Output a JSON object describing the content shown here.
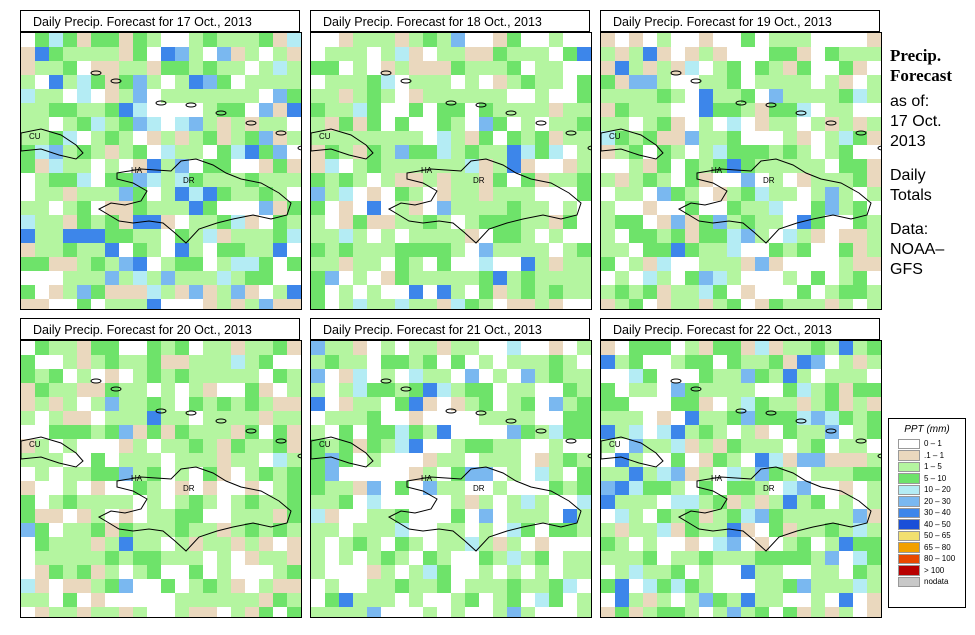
{
  "panels": [
    {
      "title": "Daily Precip. Forecast for  17 Oct., 2013",
      "seed": 11,
      "blue": 0.18,
      "green": 0.55,
      "tan": 0.1
    },
    {
      "title": "Daily Precip. Forecast for  18 Oct., 2013",
      "seed": 23,
      "blue": 0.08,
      "green": 0.58,
      "tan": 0.1
    },
    {
      "title": "Daily Precip. Forecast for  19 Oct., 2013",
      "seed": 37,
      "blue": 0.1,
      "green": 0.5,
      "tan": 0.14
    },
    {
      "title": "Daily Precip. Forecast for  20 Oct., 2013",
      "seed": 41,
      "blue": 0.05,
      "green": 0.6,
      "tan": 0.12
    },
    {
      "title": "Daily Precip. Forecast for  21 Oct., 2013",
      "seed": 59,
      "blue": 0.1,
      "green": 0.5,
      "tan": 0.06
    },
    {
      "title": "Daily Precip. Forecast for  22 Oct., 2013",
      "seed": 67,
      "blue": 0.14,
      "green": 0.55,
      "tan": 0.1
    }
  ],
  "map_labels": {
    "cu": "CU",
    "ha": "HA",
    "dr": "DR"
  },
  "side": {
    "title": [
      "Precip.",
      "Forecast"
    ],
    "asof": [
      "as of:",
      "17 Oct.",
      "2013"
    ],
    "daily": [
      "Daily",
      "Totals"
    ],
    "data": [
      "Data:",
      "NOAA–",
      "GFS"
    ]
  },
  "legend": {
    "title": "PPT (mm)",
    "items": [
      {
        "label": "0 – 1",
        "color": "#ffffff"
      },
      {
        "label": ".1 – 1",
        "color": "#ead8be"
      },
      {
        "label": "1 – 5",
        "color": "#b4f5a0"
      },
      {
        "label": "5 – 10",
        "color": "#6ee36a"
      },
      {
        "label": "10 – 20",
        "color": "#b4ecf4"
      },
      {
        "label": "20 – 30",
        "color": "#7ab8f0"
      },
      {
        "label": "30 – 40",
        "color": "#3d86ea"
      },
      {
        "label": "40 – 50",
        "color": "#1a4fd8"
      },
      {
        "label": "50 – 65",
        "color": "#f2e070"
      },
      {
        "label": "65 – 80",
        "color": "#f2a000"
      },
      {
        "label": "80 – 100",
        "color": "#e84800"
      },
      {
        "label": "> 100",
        "color": "#b80000"
      },
      {
        "label": "nodata",
        "color": "#c8c8c8"
      }
    ]
  }
}
